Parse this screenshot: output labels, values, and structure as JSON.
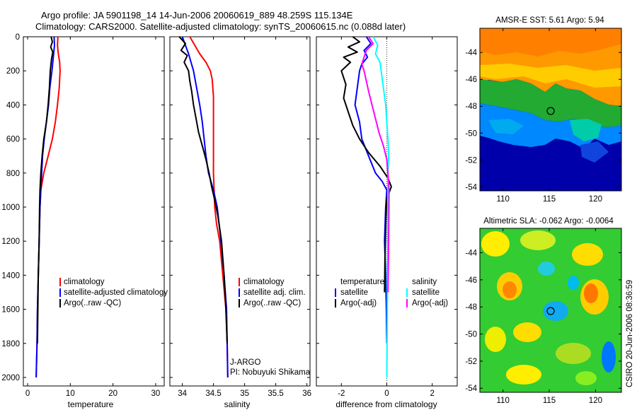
{
  "figure": {
    "title_line1": "Argo profile: JA 5901198_14 14-Jun-2006 20060619_889 48.259S 115.134E",
    "title_line2": "Climatology: CARS2000. Satellite-adjusted climatology: synTS_20060615.nc (0.088d later)",
    "side_stamp": "CSIRO 20-Jun-2006 08:36:59"
  },
  "chart_data": [
    {
      "type": "line",
      "panel": "temperature",
      "xlabel": "temperature",
      "xlim": [
        -1,
        32
      ],
      "xticks": [
        0,
        10,
        20,
        30
      ],
      "ylim": [
        2050,
        0
      ],
      "yticks": [
        0,
        200,
        400,
        600,
        800,
        1000,
        1200,
        1400,
        1600,
        1800,
        2000
      ],
      "series": [
        {
          "name": "climatology",
          "color": "#ff0000",
          "x": [
            7.1,
            7.0,
            7.2,
            7.5,
            7.6,
            7.4,
            7.0,
            6.5,
            5.8,
            4.8,
            3.8,
            3.1,
            2.9,
            2.7,
            2.5,
            2.4,
            2.3,
            2.2,
            2.1,
            2.0
          ],
          "y": [
            0,
            50,
            100,
            150,
            200,
            300,
            400,
            500,
            600,
            700,
            800,
            900,
            1000,
            1200,
            1400,
            1500,
            1600,
            1800,
            1900,
            2000
          ]
        },
        {
          "name": "satellite-adjusted climatology",
          "color": "#0000ff",
          "x": [
            6.2,
            6.3,
            6.1,
            5.9,
            5.7,
            5.2,
            4.9,
            4.4,
            3.9,
            3.5,
            3.3,
            3.1,
            2.9,
            2.7,
            2.5,
            2.4,
            2.3,
            2.2,
            2.1,
            2.0
          ],
          "y": [
            0,
            50,
            100,
            150,
            200,
            300,
            400,
            500,
            600,
            700,
            800,
            900,
            1000,
            1200,
            1400,
            1500,
            1600,
            1800,
            1900,
            2000
          ]
        },
        {
          "name": "Argo(..raw -QC)",
          "color": "#000000",
          "x": [
            5.5,
            5.8,
            5.4,
            5.9,
            5.6,
            5.3,
            5.1,
            4.8,
            4.4,
            3.8,
            3.4,
            3.1,
            2.9,
            2.8,
            2.7,
            2.5,
            2.4,
            2.3
          ],
          "y": [
            0,
            30,
            60,
            90,
            130,
            200,
            300,
            400,
            500,
            600,
            700,
            800,
            900,
            1000,
            1200,
            1400,
            1600,
            1800
          ]
        }
      ],
      "legend": [
        "climatology",
        "satellite-adjusted climatology",
        "Argo(..raw -QC)"
      ]
    },
    {
      "type": "line",
      "panel": "salinity",
      "xlabel": "salinity",
      "xlim": [
        33.8,
        36.05
      ],
      "xticks": [
        34,
        34.5,
        35,
        35.5,
        36
      ],
      "ylim": [
        2050,
        0
      ],
      "series": [
        {
          "name": "climatology",
          "color": "#ff0000",
          "x": [
            34.12,
            34.2,
            34.28,
            34.38,
            34.45,
            34.48,
            34.5,
            34.5,
            34.5,
            34.5,
            34.51,
            34.52,
            34.55,
            34.6,
            34.65,
            34.7,
            34.72,
            34.73
          ],
          "y": [
            0,
            50,
            100,
            150,
            200,
            250,
            350,
            450,
            600,
            800,
            900,
            1000,
            1100,
            1200,
            1400,
            1600,
            1800,
            2000
          ]
        },
        {
          "name": "satellite adj. clim.",
          "color": "#0000ff",
          "x": [
            34.0,
            34.05,
            34.1,
            34.14,
            34.18,
            34.23,
            34.28,
            34.32,
            34.35,
            34.38,
            34.42,
            34.5,
            34.56,
            34.62,
            34.67,
            34.71,
            34.73
          ],
          "y": [
            0,
            50,
            100,
            150,
            200,
            300,
            400,
            500,
            600,
            700,
            800,
            900,
            1000,
            1200,
            1400,
            1600,
            2000
          ]
        },
        {
          "name": "Argo(..raw -QC)",
          "color": "#000000",
          "x": [
            33.95,
            34.05,
            33.98,
            34.08,
            34.03,
            34.1,
            34.12,
            34.15,
            34.18,
            34.22,
            34.26,
            34.32,
            34.38,
            34.43,
            34.47,
            34.52,
            34.57,
            34.63,
            34.67,
            34.7,
            34.72
          ],
          "y": [
            0,
            40,
            80,
            110,
            150,
            200,
            260,
            320,
            400,
            480,
            560,
            640,
            720,
            800,
            880,
            960,
            1050,
            1200,
            1400,
            1600,
            1800
          ]
        }
      ],
      "legend": [
        "climatology",
        "satellite adj. clim.",
        "Argo(..raw -QC)"
      ],
      "annotations": [
        "J-ARGO",
        "PI: Nobuyuki Shikama"
      ]
    },
    {
      "type": "line",
      "panel": "difference",
      "xlabel": "difference from climatology",
      "xlim": [
        -3.1,
        3.1
      ],
      "xticks": [
        -2,
        0,
        2
      ],
      "ylim": [
        2050,
        0
      ],
      "reference_line_x": 0,
      "series": [
        {
          "name": "temperature satellite",
          "color": "#0000ff",
          "x": [
            -0.9,
            -0.7,
            -1.0,
            -0.85,
            -1.1,
            -1.2,
            -1.3,
            -1.4,
            -1.2,
            -1.1,
            -0.8,
            -0.5,
            -0.2,
            0.0,
            -0.05,
            -0.1,
            -0.05,
            -0.02,
            0.0
          ],
          "y": [
            0,
            40,
            80,
            120,
            160,
            200,
            300,
            400,
            500,
            600,
            700,
            800,
            850,
            900,
            1000,
            1200,
            1400,
            1600,
            1800
          ]
        },
        {
          "name": "temperature Argo(-adj)",
          "color": "#000000",
          "x": [
            -1.5,
            -1.2,
            -1.7,
            -1.3,
            -1.9,
            -1.6,
            -2.0,
            -1.8,
            -1.9,
            -1.7,
            -1.5,
            -1.2,
            -0.8,
            -0.3,
            0.05,
            0.2,
            0.0,
            -0.05,
            -0.08,
            -0.1
          ],
          "y": [
            0,
            30,
            60,
            90,
            120,
            150,
            200,
            280,
            360,
            440,
            520,
            600,
            680,
            760,
            830,
            880,
            950,
            1100,
            1300,
            1500
          ]
        },
        {
          "name": "salinity satellite",
          "color": "#00ffff",
          "x": [
            -0.6,
            -0.4,
            -0.5,
            -0.3,
            -0.25,
            -0.15,
            -0.05,
            0.0,
            0.05,
            0.08,
            0.05,
            0.05,
            0.04,
            0.03,
            0.02,
            0.0
          ],
          "y": [
            0,
            50,
            100,
            150,
            200,
            300,
            400,
            500,
            600,
            700,
            800,
            900,
            1100,
            1400,
            1700,
            2000
          ]
        },
        {
          "name": "salinity Argo(-adj)",
          "color": "#ff00ff",
          "x": [
            -0.8,
            -0.6,
            -0.9,
            -1.0,
            -1.1,
            -1.0,
            -0.9,
            -0.8,
            -0.65,
            -0.5,
            -0.35,
            -0.15,
            0.0,
            0.05,
            0.1,
            0.08,
            0.05
          ],
          "y": [
            0,
            40,
            80,
            120,
            160,
            200,
            260,
            320,
            400,
            480,
            560,
            640,
            720,
            800,
            900,
            1200,
            1500
          ]
        }
      ],
      "legend": {
        "temperature_header": "temperature",
        "salinity_header": "salinity",
        "items": [
          "satellite",
          "Argo(-adj)",
          "satellite",
          "Argo(-adj)"
        ]
      }
    },
    {
      "type": "heatmap",
      "panel": "sst_map",
      "title": "AMSR-E SST: 5.61 Argo: 5.94",
      "xticks": [
        110,
        115,
        120
      ],
      "xlim": [
        107.5,
        122.8
      ],
      "yticks": [
        -44,
        -46,
        -48,
        -50,
        -52,
        -54
      ],
      "ylim": [
        -54.3,
        -42.2
      ],
      "marker": {
        "lon": 115.134,
        "lat": -48.259
      }
    },
    {
      "type": "heatmap",
      "panel": "sla_map",
      "title": "Altimetric SLA: -0.062 Argo: -0.0064",
      "xticks": [
        110,
        115,
        120
      ],
      "xlim": [
        107.5,
        122.8
      ],
      "yticks": [
        -44,
        -46,
        -48,
        -50,
        -52,
        -54
      ],
      "ylim": [
        -54.3,
        -42.2
      ],
      "marker": {
        "lon": 115.134,
        "lat": -48.259
      }
    }
  ]
}
